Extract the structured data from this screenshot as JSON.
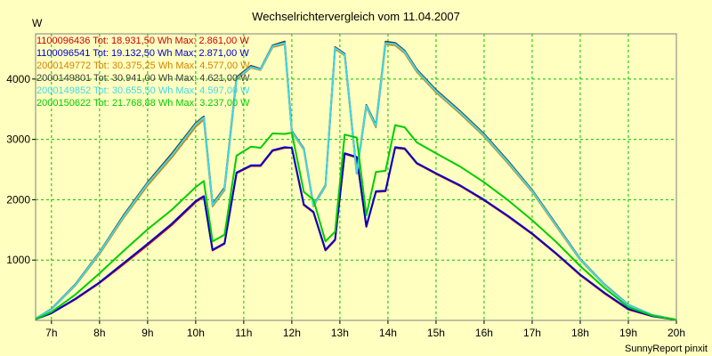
{
  "chart_data": {
    "type": "line",
    "title": "Wechselrichtervergleich vom 11.04.2007",
    "ylabel": "W",
    "xlabel": "",
    "footer": "SunnyReport pinxit",
    "x_ticks": [
      "7h",
      "8h",
      "9h",
      "10h",
      "11h",
      "12h",
      "13h",
      "14h",
      "15h",
      "16h",
      "17h",
      "18h",
      "19h",
      "20h"
    ],
    "y_ticks": [
      "1000",
      "2000",
      "3000",
      "4000"
    ],
    "ylim": [
      0,
      4750
    ],
    "xlim": [
      6.67,
      20.0
    ],
    "grid": true,
    "legend_position": "top-left",
    "x": [
      6.67,
      7.0,
      7.5,
      8.0,
      8.5,
      9.0,
      9.5,
      10.0,
      10.17,
      10.35,
      10.6,
      10.85,
      11.15,
      11.35,
      11.6,
      11.85,
      12.0,
      12.25,
      12.45,
      12.7,
      12.9,
      13.1,
      13.35,
      13.55,
      13.75,
      13.95,
      14.15,
      14.35,
      14.6,
      15.0,
      15.5,
      16.0,
      16.5,
      17.0,
      17.5,
      18.0,
      18.5,
      19.0,
      19.5,
      20.0
    ],
    "series": [
      {
        "name": "1100096436 Tot: 18.931,50 Wh Max: 2.861,00 W",
        "color": "#cc0000",
        "values": [
          20,
          120,
          350,
          620,
          930,
          1250,
          1580,
          1960,
          2050,
          1160,
          1270,
          2440,
          2560,
          2560,
          2810,
          2860,
          2860,
          1910,
          1790,
          1160,
          1330,
          2760,
          2700,
          1550,
          2130,
          2140,
          2861,
          2840,
          2600,
          2430,
          2230,
          1990,
          1720,
          1430,
          1100,
          750,
          450,
          180,
          70,
          10
        ]
      },
      {
        "name": "1100096541 Tot: 19.132,50 Wh Max: 2.871,00 W",
        "color": "#0000cc",
        "values": [
          20,
          120,
          360,
          630,
          950,
          1270,
          1600,
          1980,
          2060,
          1170,
          1280,
          2450,
          2570,
          2570,
          2820,
          2871,
          2860,
          1920,
          1800,
          1170,
          1340,
          2770,
          2710,
          1560,
          2140,
          2150,
          2871,
          2850,
          2610,
          2440,
          2240,
          2000,
          1730,
          1440,
          1110,
          760,
          460,
          190,
          70,
          10
        ]
      },
      {
        "name": "2000149772 Tot: 30.375,25 Wh Max: 4.577,00 W",
        "color": "#d88000",
        "values": [
          30,
          180,
          580,
          1100,
          1700,
          2240,
          2700,
          3210,
          3330,
          1890,
          2160,
          3990,
          4190,
          4150,
          4530,
          4577,
          3120,
          2830,
          1890,
          2220,
          4500,
          4390,
          2430,
          3540,
          3200,
          4577,
          4560,
          4430,
          4120,
          3780,
          3430,
          3050,
          2600,
          2130,
          1560,
          1000,
          590,
          250,
          90,
          10
        ]
      },
      {
        "name": "2000149801 Tot: 30.941,00 Wh Max: 4.621,00 W",
        "color": "#404040",
        "values": [
          30,
          190,
          600,
          1130,
          1740,
          2290,
          2760,
          3270,
          3380,
          1930,
          2200,
          4030,
          4220,
          4170,
          4560,
          4621,
          3140,
          2850,
          1910,
          2240,
          4530,
          4420,
          2450,
          3570,
          3240,
          4621,
          4600,
          4470,
          4160,
          3820,
          3470,
          3090,
          2640,
          2160,
          1590,
          1020,
          600,
          260,
          90,
          10
        ]
      },
      {
        "name": "2000149852 Tot: 30.655,50 Wh Max: 4.597,00 W",
        "color": "#40d8e8",
        "values": [
          30,
          185,
          590,
          1120,
          1720,
          2270,
          2730,
          3250,
          3360,
          1910,
          2180,
          4010,
          4200,
          4160,
          4545,
          4597,
          3130,
          2840,
          1900,
          2230,
          4515,
          4405,
          2440,
          3555,
          3220,
          4597,
          4580,
          4450,
          4140,
          3800,
          3450,
          3070,
          2620,
          2145,
          1575,
          1010,
          595,
          255,
          90,
          10
        ]
      },
      {
        "name": "2000150622 Tot: 21.768,88 Wh Max: 3.237,00 W",
        "color": "#00cc00",
        "values": [
          20,
          140,
          430,
          780,
          1150,
          1510,
          1830,
          2210,
          2310,
          1310,
          1420,
          2730,
          2880,
          2860,
          3100,
          3090,
          3110,
          2130,
          2000,
          1310,
          1470,
          3080,
          3030,
          1740,
          2460,
          2480,
          3237,
          3200,
          2950,
          2770,
          2550,
          2290,
          1990,
          1660,
          1300,
          900,
          540,
          220,
          80,
          10
        ]
      }
    ]
  }
}
